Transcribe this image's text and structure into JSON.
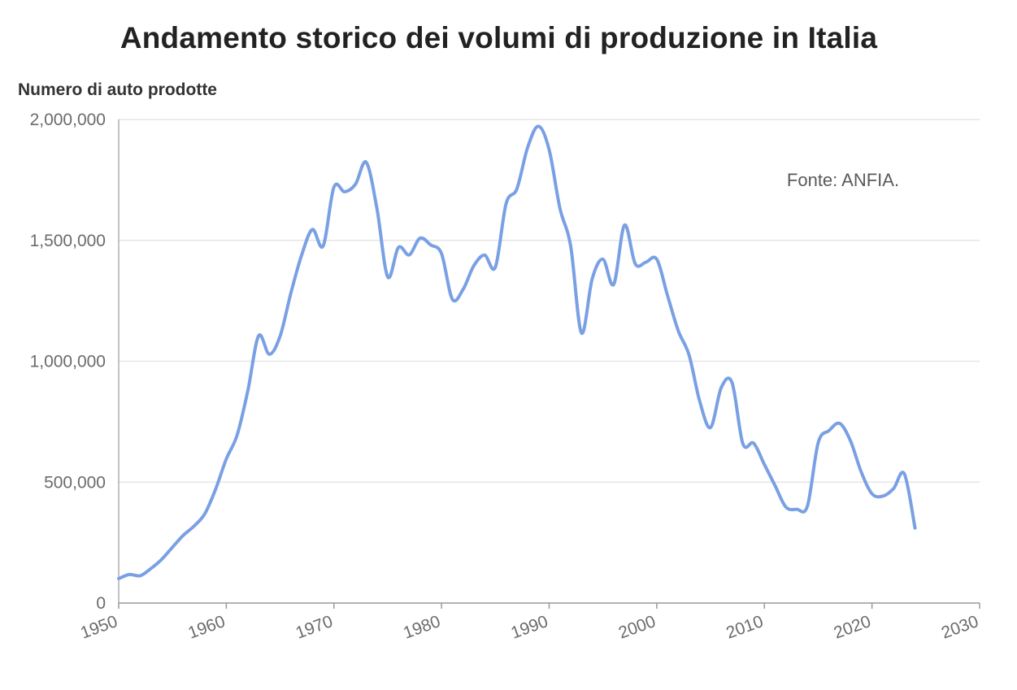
{
  "chart_data": {
    "type": "line",
    "title": "Andamento storico dei volumi di produzione in Italia",
    "ylabel": "Numero di auto prodotte",
    "xlabel": "",
    "annotation": "Fonte: ANFIA.",
    "xlim": [
      1950,
      2030
    ],
    "ylim": [
      0,
      2000000
    ],
    "x_ticks": [
      1950,
      1960,
      1970,
      1980,
      1990,
      2000,
      2010,
      2020,
      2030
    ],
    "x_tick_labels": [
      "1950",
      "1960",
      "1970",
      "1980",
      "1990",
      "2000",
      "2010",
      "2020",
      "2030"
    ],
    "y_ticks": [
      0,
      500000,
      1000000,
      1500000,
      2000000
    ],
    "y_tick_labels": [
      "0",
      "500,000",
      "1,000,000",
      "1,500,000",
      "2,000,000"
    ],
    "grid": true,
    "line_color": "#7aa0e4",
    "series": [
      {
        "x": [
          1950,
          1951,
          1952,
          1953,
          1954,
          1955,
          1956,
          1957,
          1958,
          1959,
          1960,
          1961,
          1962,
          1963,
          1964,
          1965,
          1966,
          1967,
          1968,
          1969,
          1970,
          1971,
          1972,
          1973,
          1974,
          1975,
          1976,
          1977,
          1978,
          1979,
          1980,
          1981,
          1982,
          1983,
          1984,
          1985,
          1986,
          1987,
          1988,
          1989,
          1990,
          1991,
          1992,
          1993,
          1994,
          1995,
          1996,
          1997,
          1998,
          1999,
          2000,
          2001,
          2002,
          2003,
          2004,
          2005,
          2006,
          2007,
          2008,
          2009,
          2010,
          2011,
          2012,
          2013,
          2014,
          2015,
          2016,
          2017,
          2018,
          2019,
          2020,
          2021,
          2022,
          2023,
          2024
        ],
        "values": [
          101000,
          118000,
          113000,
          143000,
          181000,
          231000,
          280000,
          318000,
          369000,
          470000,
          596000,
          694000,
          878000,
          1105000,
          1029000,
          1104000,
          1282000,
          1439000,
          1545000,
          1477000,
          1720000,
          1701000,
          1732000,
          1823000,
          1631000,
          1349000,
          1471000,
          1440000,
          1509000,
          1481000,
          1445000,
          1257000,
          1297000,
          1395000,
          1439000,
          1389000,
          1652000,
          1713000,
          1884000,
          1972000,
          1875000,
          1633000,
          1476000,
          1117000,
          1341000,
          1422000,
          1318000,
          1563000,
          1403000,
          1410000,
          1422000,
          1272000,
          1126000,
          1026000,
          833000,
          726000,
          892000,
          911000,
          659000,
          661000,
          573000,
          485000,
          397000,
          388000,
          401000,
          663000,
          713000,
          743000,
          671000,
          542000,
          452000,
          442000,
          473000,
          535000,
          310000
        ]
      }
    ]
  }
}
